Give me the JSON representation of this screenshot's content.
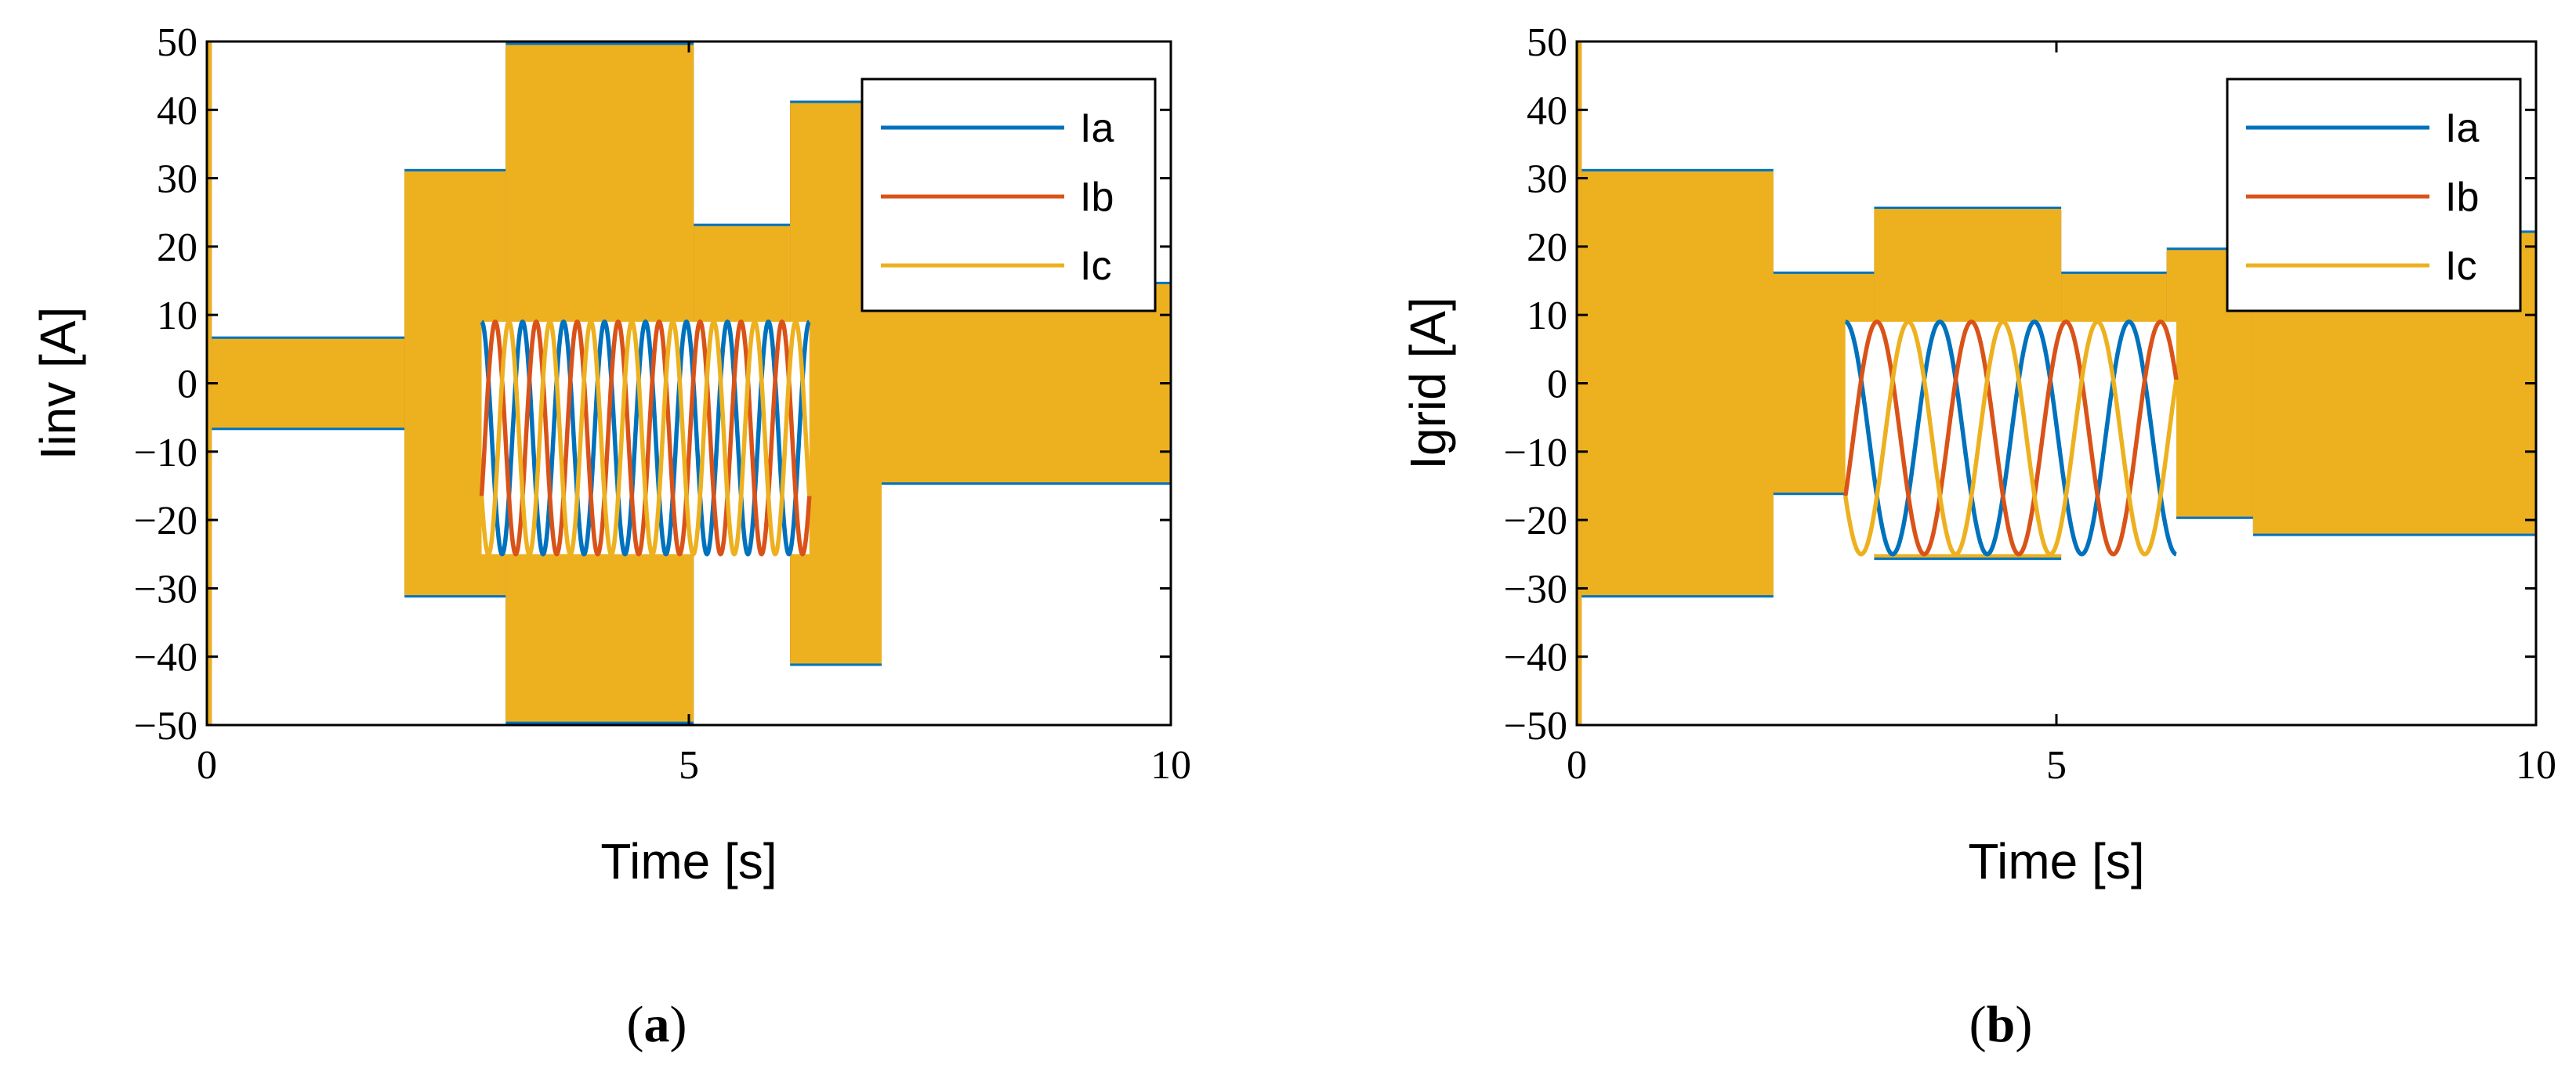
{
  "chart_data": [
    {
      "type": "line",
      "caption": "a",
      "xlabel": "Time [s]",
      "ylabel": "Iinv [A]",
      "xlim": [
        0,
        10
      ],
      "ylim": [
        -50,
        50
      ],
      "xticks": [
        0,
        5,
        10
      ],
      "yticks": [
        50,
        40,
        30,
        20,
        10,
        0,
        -10,
        -20,
        -30,
        -40,
        -50
      ],
      "xtick_labels": [
        "0",
        "5",
        "10"
      ],
      "ytick_labels": [
        "50",
        "40",
        "30",
        "20",
        "10",
        "0",
        "−10",
        "−20",
        "−30",
        "−40",
        "−50"
      ],
      "grid": false,
      "legend_position": "top-right",
      "series": [
        {
          "name": "Ia",
          "color": "#0072BD"
        },
        {
          "name": "Ib",
          "color": "#D95319"
        },
        {
          "name": "Ic",
          "color": "#EDB120"
        }
      ],
      "envelope": [
        {
          "t0": 0.0,
          "t1": 0.05,
          "amp": 50
        },
        {
          "t0": 0.05,
          "t1": 2.05,
          "amp": 6.5
        },
        {
          "t0": 2.05,
          "t1": 3.1,
          "amp": 31
        },
        {
          "t0": 3.1,
          "t1": 5.05,
          "amp": 49.5
        },
        {
          "t0": 5.05,
          "t1": 6.05,
          "amp": 23
        },
        {
          "t0": 6.05,
          "t1": 7.0,
          "amp": 41
        },
        {
          "t0": 7.0,
          "t1": 10.0,
          "amp": 14.5
        }
      ],
      "inset": {
        "x": [
          2.85,
          6.25
        ],
        "y": [
          -25,
          9
        ],
        "cycles": 8
      }
    },
    {
      "type": "line",
      "caption": "b",
      "xlabel": "Time [s]",
      "ylabel": "Igrid [A]",
      "xlim": [
        0,
        10
      ],
      "ylim": [
        -50,
        50
      ],
      "xticks": [
        0,
        5,
        10
      ],
      "yticks": [
        50,
        40,
        30,
        20,
        10,
        0,
        -10,
        -20,
        -30,
        -40,
        -50
      ],
      "xtick_labels": [
        "0",
        "5",
        "10"
      ],
      "ytick_labels": [
        "50",
        "40",
        "30",
        "20",
        "10",
        "0",
        "−10",
        "−20",
        "−30",
        "−40",
        "−50"
      ],
      "grid": false,
      "legend_position": "top-right",
      "series": [
        {
          "name": "Ia",
          "color": "#0072BD"
        },
        {
          "name": "Ib",
          "color": "#D95319"
        },
        {
          "name": "Ic",
          "color": "#EDB120"
        }
      ],
      "envelope": [
        {
          "t0": 0.0,
          "t1": 0.05,
          "amp": 50
        },
        {
          "t0": 0.05,
          "t1": 2.05,
          "amp": 31
        },
        {
          "t0": 2.05,
          "t1": 3.1,
          "amp": 16
        },
        {
          "t0": 3.1,
          "t1": 5.05,
          "amp": 25.5
        },
        {
          "t0": 5.05,
          "t1": 6.15,
          "amp": 16
        },
        {
          "t0": 6.15,
          "t1": 7.05,
          "amp": 19.5
        },
        {
          "t0": 7.05,
          "t1": 10.0,
          "amp": 22
        }
      ],
      "inset": {
        "x": [
          2.8,
          6.25
        ],
        "y": [
          -25,
          9
        ],
        "cycles": 3.5
      }
    }
  ]
}
